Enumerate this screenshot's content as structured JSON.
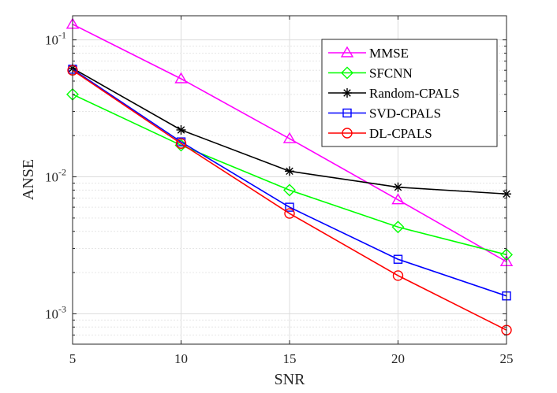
{
  "chart_data": {
    "type": "line",
    "title": "",
    "xlabel": "SNR",
    "ylabel": "ANSE",
    "yscale": "log",
    "xlim": [
      5,
      25
    ],
    "ylim": [
      0.0006,
      0.15
    ],
    "grid": true,
    "legend_position": "top-right",
    "x": [
      5,
      10,
      15,
      20,
      25
    ],
    "x_ticks": [
      {
        "value": 5,
        "label": "5"
      },
      {
        "value": 10,
        "label": "10"
      },
      {
        "value": 15,
        "label": "15"
      },
      {
        "value": 20,
        "label": "20"
      },
      {
        "value": 25,
        "label": "25"
      }
    ],
    "y_ticks": [
      {
        "value": 0.1,
        "base": "10",
        "exp": "-1"
      },
      {
        "value": 0.01,
        "base": "10",
        "exp": "-2"
      },
      {
        "value": 0.001,
        "base": "10",
        "exp": "-3"
      }
    ],
    "series": [
      {
        "name": "MMSE",
        "color": "#ff00ff",
        "marker": "triangle",
        "values": [
          0.13,
          0.052,
          0.019,
          0.0068,
          0.0024
        ]
      },
      {
        "name": "SFCNN",
        "color": "#00ff00",
        "marker": "diamond",
        "values": [
          0.04,
          0.017,
          0.008,
          0.0043,
          0.0027
        ]
      },
      {
        "name": "Random-CPALS",
        "color": "#000000",
        "marker": "asterisk",
        "values": [
          0.062,
          0.022,
          0.011,
          0.0084,
          0.0075
        ]
      },
      {
        "name": "SVD-CPALS",
        "color": "#0000ff",
        "marker": "square",
        "values": [
          0.061,
          0.018,
          0.006,
          0.0025,
          0.00135
        ]
      },
      {
        "name": "DL-CPALS",
        "color": "#ff0000",
        "marker": "circle",
        "values": [
          0.06,
          0.0175,
          0.0054,
          0.0019,
          0.00076
        ]
      }
    ]
  }
}
